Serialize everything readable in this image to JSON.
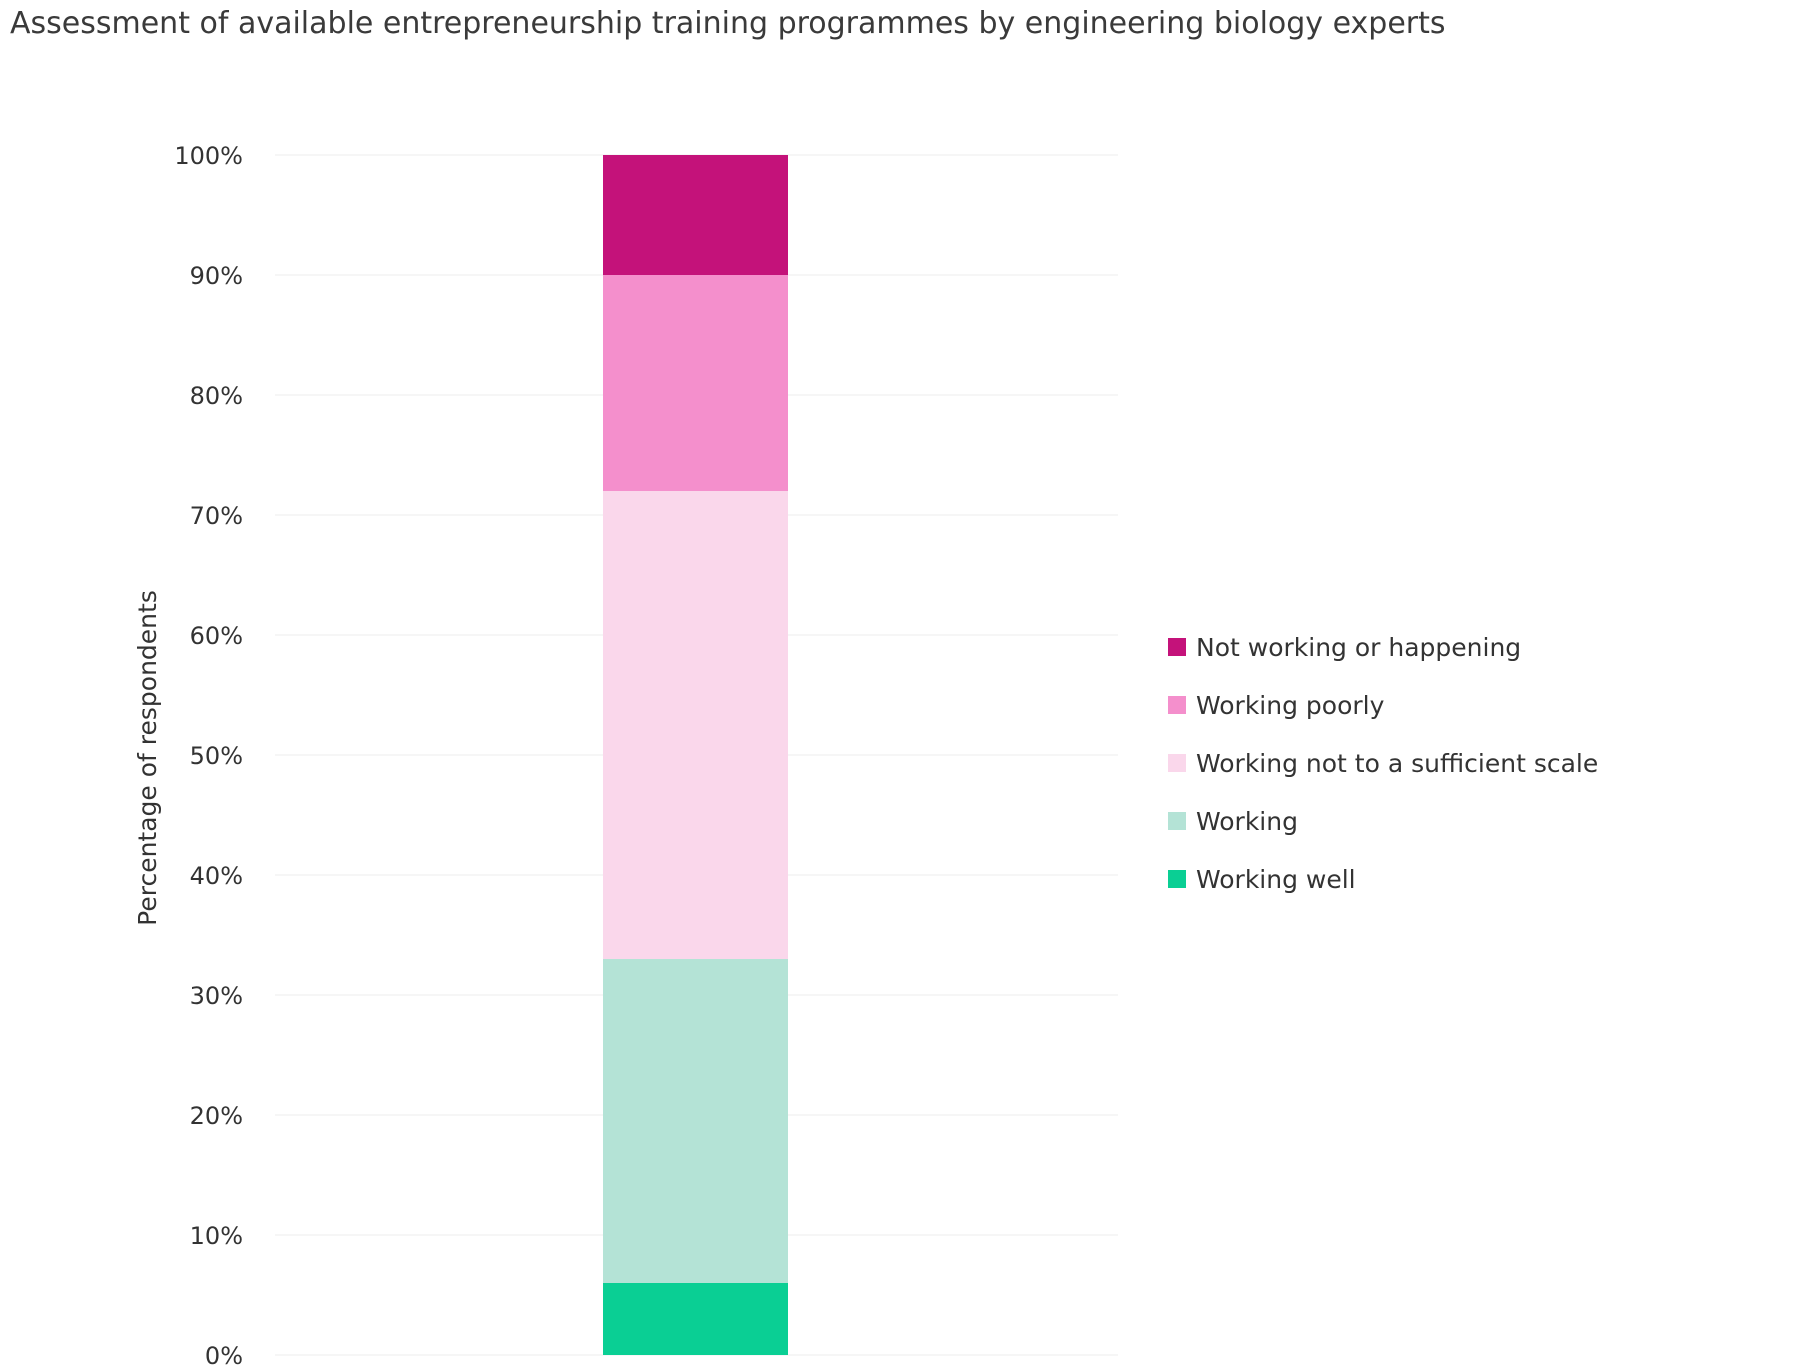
{
  "chart_data": {
    "type": "bar",
    "stacked": true,
    "title": "Assessment of available entrepreneurship training programmes by engineering biology experts",
    "xlabel": "",
    "ylabel": "Percentage of respondents",
    "ylim": [
      0,
      100
    ],
    "y_ticks": [
      "0%",
      "10%",
      "20%",
      "30%",
      "40%",
      "50%",
      "60%",
      "70%",
      "80%",
      "90%",
      "100%"
    ],
    "categories": [
      ""
    ],
    "grid": true,
    "legend_position": "right",
    "series": [
      {
        "name": "Working well",
        "values": [
          6
        ],
        "color": "#0acf94"
      },
      {
        "name": "Working",
        "values": [
          27
        ],
        "color": "#b4e3d6"
      },
      {
        "name": "Working not to a sufficient scale",
        "values": [
          39
        ],
        "color": "#fad7eb"
      },
      {
        "name": "Working poorly",
        "values": [
          18
        ],
        "color": "#f48fcc"
      },
      {
        "name": "Not working or happening",
        "values": [
          10
        ],
        "color": "#c4127a"
      }
    ]
  }
}
